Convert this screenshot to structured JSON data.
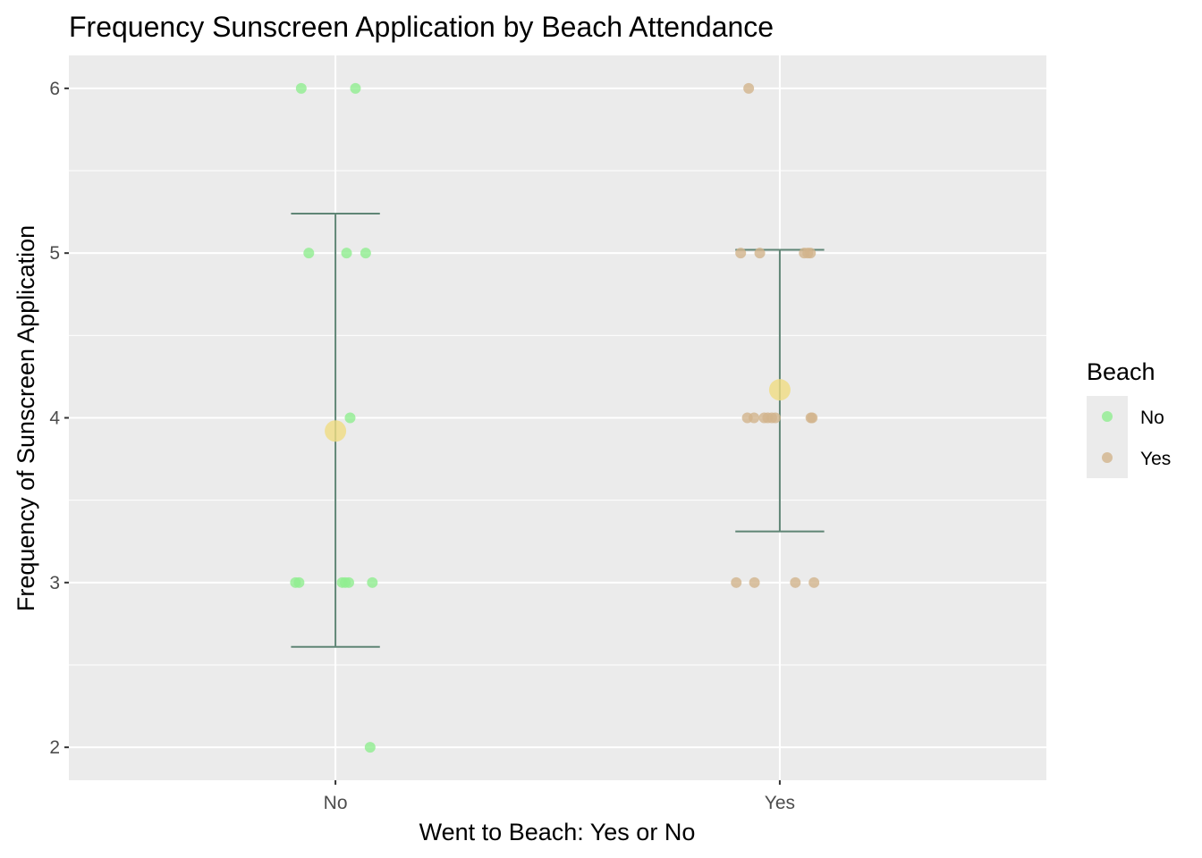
{
  "chart_data": {
    "type": "scatter",
    "title": "Frequency Sunscreen Application by Beach Attendance",
    "xlabel": "Went to Beach: Yes or No",
    "ylabel": "Frequency of Sunscreen Application",
    "categories": [
      "No",
      "Yes"
    ],
    "ylim": [
      1.8,
      6.2
    ],
    "yticks": [
      2,
      3,
      4,
      5,
      6
    ],
    "grid": true,
    "legend": {
      "title": "Beach",
      "placement": "right",
      "items": [
        {
          "label": "No",
          "color": "#90ee90"
        },
        {
          "label": "Yes",
          "color": "#d2b48c"
        }
      ]
    },
    "series": [
      {
        "name": "No",
        "color": "#90ee90",
        "points": [
          {
            "x": "No",
            "jitter": -0.077,
            "y": 6
          },
          {
            "x": "No",
            "jitter": 0.045,
            "y": 6
          },
          {
            "x": "No",
            "jitter": -0.06,
            "y": 5
          },
          {
            "x": "No",
            "jitter": 0.025,
            "y": 5
          },
          {
            "x": "No",
            "jitter": 0.068,
            "y": 5
          },
          {
            "x": "No",
            "jitter": 0.033,
            "y": 4
          },
          {
            "x": "No",
            "jitter": -0.09,
            "y": 3
          },
          {
            "x": "No",
            "jitter": -0.082,
            "y": 3
          },
          {
            "x": "No",
            "jitter": 0.015,
            "y": 3
          },
          {
            "x": "No",
            "jitter": 0.022,
            "y": 3
          },
          {
            "x": "No",
            "jitter": 0.03,
            "y": 3
          },
          {
            "x": "No",
            "jitter": 0.083,
            "y": 3
          },
          {
            "x": "No",
            "jitter": 0.078,
            "y": 2
          }
        ]
      },
      {
        "name": "Yes",
        "color": "#d2b48c",
        "points": [
          {
            "x": "Yes",
            "jitter": -0.07,
            "y": 6
          },
          {
            "x": "Yes",
            "jitter": -0.088,
            "y": 5
          },
          {
            "x": "Yes",
            "jitter": -0.045,
            "y": 5
          },
          {
            "x": "Yes",
            "jitter": 0.055,
            "y": 5
          },
          {
            "x": "Yes",
            "jitter": 0.063,
            "y": 5
          },
          {
            "x": "Yes",
            "jitter": 0.069,
            "y": 5
          },
          {
            "x": "Yes",
            "jitter": -0.073,
            "y": 4
          },
          {
            "x": "Yes",
            "jitter": -0.058,
            "y": 4
          },
          {
            "x": "Yes",
            "jitter": -0.035,
            "y": 4
          },
          {
            "x": "Yes",
            "jitter": -0.027,
            "y": 4
          },
          {
            "x": "Yes",
            "jitter": -0.018,
            "y": 4
          },
          {
            "x": "Yes",
            "jitter": -0.01,
            "y": 4
          },
          {
            "x": "Yes",
            "jitter": 0.07,
            "y": 4
          },
          {
            "x": "Yes",
            "jitter": 0.073,
            "y": 4
          },
          {
            "x": "Yes",
            "jitter": -0.098,
            "y": 3
          },
          {
            "x": "Yes",
            "jitter": -0.057,
            "y": 3
          },
          {
            "x": "Yes",
            "jitter": 0.035,
            "y": 3
          },
          {
            "x": "Yes",
            "jitter": 0.077,
            "y": 3
          }
        ]
      }
    ],
    "means": [
      {
        "x": "No",
        "y": 3.92,
        "color": "#f0dc82"
      },
      {
        "x": "Yes",
        "y": 4.17,
        "color": "#f0dc82"
      }
    ],
    "error_bars": [
      {
        "x": "No",
        "ymin": 2.61,
        "ymax": 5.24,
        "color": "#5f8575"
      },
      {
        "x": "Yes",
        "ymin": 3.31,
        "ymax": 5.02,
        "color": "#5f8575"
      }
    ]
  }
}
